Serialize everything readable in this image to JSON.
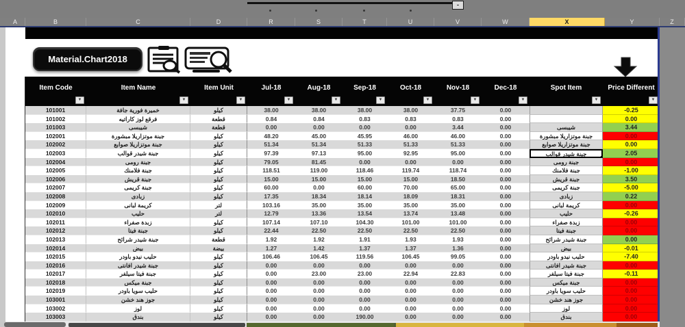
{
  "sheet": {
    "column_letters": [
      "A",
      "B",
      "C",
      "D",
      "R",
      "S",
      "T",
      "U",
      "V",
      "W",
      "X",
      "Y",
      "Z"
    ],
    "selected_column": "X",
    "outline": {
      "collapse_label": "-"
    }
  },
  "toolbar": {
    "chart_button_label": "Material.Chart2018"
  },
  "table": {
    "headers": [
      "Item Code",
      "Item Name",
      "Item Unit",
      "Jul-18",
      "Aug-18",
      "Sep-18",
      "Oct-18",
      "Nov-18",
      "Dec-18",
      "Spot Item",
      "Price Different"
    ],
    "filter_glyph": "▼",
    "rows": [
      {
        "code": "101001",
        "name": "خميرة فورية جافة",
        "unit": "كيلو",
        "months": [
          "38.00",
          "38.00",
          "38.00",
          "38.00",
          "37.75",
          "0.00"
        ],
        "spot": "",
        "diff": "-0.25",
        "diff_color": "yellow",
        "selected": false
      },
      {
        "code": "101002",
        "name": "فرقع لوز كاراتيه",
        "unit": "قطعة",
        "months": [
          "0.84",
          "0.84",
          "0.83",
          "0.83",
          "0.83",
          "0.00"
        ],
        "spot": "",
        "diff": "0.00",
        "diff_color": "yellow",
        "selected": false
      },
      {
        "code": "101003",
        "name": "شيبسى",
        "unit": "قطعة",
        "months": [
          "0.00",
          "0.00",
          "0.00",
          "0.00",
          "3.44",
          "0.00"
        ],
        "spot": "شيبسى",
        "diff": "3.44",
        "diff_color": "green",
        "selected": false
      },
      {
        "code": "102001",
        "name": "جبنة موتزاريلا مبشورة",
        "unit": "كيلو",
        "months": [
          "48.20",
          "45.00",
          "45.95",
          "46.00",
          "46.00",
          "0.00"
        ],
        "spot": "جبنة موتزاريلا مبشورة",
        "diff": "0.00",
        "diff_color": "red",
        "selected": false
      },
      {
        "code": "102002",
        "name": "جبنة موتزاريلا صوابع",
        "unit": "كيلو",
        "months": [
          "51.34",
          "51.34",
          "51.33",
          "51.33",
          "51.33",
          "0.00"
        ],
        "spot": "جبنة موتزاريلا صوابع",
        "diff": "0.00",
        "diff_color": "yellow",
        "selected": false
      },
      {
        "code": "102003",
        "name": "جبنة شيدر قوالب",
        "unit": "كيلو",
        "months": [
          "97.39",
          "97.13",
          "95.00",
          "92.95",
          "95.00",
          "0.00"
        ],
        "spot": "جبنة شيدر قوالب",
        "diff": "2.05",
        "diff_color": "green",
        "selected": true
      },
      {
        "code": "102004",
        "name": "جبنة رومى",
        "unit": "كيلو",
        "months": [
          "79.05",
          "81.45",
          "0.00",
          "0.00",
          "0.00",
          "0.00"
        ],
        "spot": "جبنة رومى",
        "diff": "0.00",
        "diff_color": "red",
        "selected": false
      },
      {
        "code": "102005",
        "name": "جبنة فلامنك",
        "unit": "كيلو",
        "months": [
          "118.51",
          "119.00",
          "118.46",
          "119.74",
          "118.74",
          "0.00"
        ],
        "spot": "جبنة فلامنك",
        "diff": "-1.00",
        "diff_color": "yellow",
        "selected": false
      },
      {
        "code": "102006",
        "name": "جبنة قريش",
        "unit": "كيلو",
        "months": [
          "15.00",
          "15.00",
          "15.00",
          "15.00",
          "18.50",
          "0.00"
        ],
        "spot": "جبنة قريش",
        "diff": "3.50",
        "diff_color": "green",
        "selected": false
      },
      {
        "code": "102007",
        "name": "جبنة كريمى",
        "unit": "كيلو",
        "months": [
          "60.00",
          "0.00",
          "60.00",
          "70.00",
          "65.00",
          "0.00"
        ],
        "spot": "جبنة كريمى",
        "diff": "-5.00",
        "diff_color": "yellow",
        "selected": false
      },
      {
        "code": "102008",
        "name": "زبادى",
        "unit": "كيلو",
        "months": [
          "17.35",
          "18.34",
          "18.14",
          "18.09",
          "18.31",
          "0.00"
        ],
        "spot": "زبادى",
        "diff": "0.22",
        "diff_color": "green",
        "selected": false
      },
      {
        "code": "102009",
        "name": "كريمة لبانى",
        "unit": "لتر",
        "months": [
          "103.16",
          "35.00",
          "35.00",
          "35.00",
          "35.00",
          "0.00"
        ],
        "spot": "كريمة لبانى",
        "diff": "0.00",
        "diff_color": "red",
        "selected": false
      },
      {
        "code": "102010",
        "name": "حليب",
        "unit": "لتر",
        "months": [
          "12.79",
          "13.36",
          "13.54",
          "13.74",
          "13.48",
          "0.00"
        ],
        "spot": "حليب",
        "diff": "-0.26",
        "diff_color": "yellow",
        "selected": false
      },
      {
        "code": "102011",
        "name": "زبدة صفراء",
        "unit": "كيلو",
        "months": [
          "107.14",
          "107.10",
          "104.30",
          "101.00",
          "101.00",
          "0.00"
        ],
        "spot": "زبدة صفراء",
        "diff": "0.00",
        "diff_color": "red",
        "selected": false
      },
      {
        "code": "102012",
        "name": "جبنة فيتا",
        "unit": "كيلو",
        "months": [
          "22.44",
          "22.50",
          "22.50",
          "22.50",
          "22.50",
          "0.00"
        ],
        "spot": "جبنة فيتا",
        "diff": "0.00",
        "diff_color": "red",
        "selected": false
      },
      {
        "code": "102013",
        "name": "جبنة شيدر شرائح",
        "unit": "قطعة",
        "months": [
          "1.92",
          "1.92",
          "1.91",
          "1.93",
          "1.93",
          "0.00"
        ],
        "spot": "جبنة شيدر شرائح",
        "diff": "0.00",
        "diff_color": "green",
        "selected": false
      },
      {
        "code": "102014",
        "name": "بيض",
        "unit": "بيضة",
        "months": [
          "1.27",
          "1.42",
          "1.37",
          "1.37",
          "1.36",
          "0.00"
        ],
        "spot": "بيض",
        "diff": "-0.01",
        "diff_color": "yellow",
        "selected": false
      },
      {
        "code": "102015",
        "name": "حليب نيدو باودر",
        "unit": "كيلو",
        "months": [
          "106.46",
          "106.45",
          "119.56",
          "106.45",
          "99.05",
          "0.00"
        ],
        "spot": "حليب نيدو باودر",
        "diff": "-7.40",
        "diff_color": "yellow",
        "selected": false
      },
      {
        "code": "102016",
        "name": "جبنة شيدر افانتى",
        "unit": "كيلو",
        "months": [
          "0.00",
          "0.00",
          "0.00",
          "0.00",
          "0.00",
          "0.00"
        ],
        "spot": "جبنة شيدر افانتى",
        "diff": "0.00",
        "diff_color": "red",
        "selected": false
      },
      {
        "code": "102017",
        "name": "جبنة فيتا سيلفر",
        "unit": "كيلو",
        "months": [
          "0.00",
          "23.00",
          "23.00",
          "22.94",
          "22.83",
          "0.00"
        ],
        "spot": "جبنة فيتا سيلفر",
        "diff": "-0.11",
        "diff_color": "yellow",
        "selected": false
      },
      {
        "code": "102018",
        "name": "جبنة ميكس",
        "unit": "كيلو",
        "months": [
          "0.00",
          "0.00",
          "0.00",
          "0.00",
          "0.00",
          "0.00"
        ],
        "spot": "جبنة ميكس",
        "diff": "0.00",
        "diff_color": "red",
        "selected": false
      },
      {
        "code": "102019",
        "name": "حليب سويا باودر",
        "unit": "كيلو",
        "months": [
          "0.00",
          "0.00",
          "0.00",
          "0.00",
          "0.00",
          "0.00"
        ],
        "spot": "حليب سويا باودر",
        "diff": "0.00",
        "diff_color": "red",
        "selected": false
      },
      {
        "code": "103001",
        "name": "جوز هند خشن",
        "unit": "كيلو",
        "months": [
          "0.00",
          "0.00",
          "0.00",
          "0.00",
          "0.00",
          "0.00"
        ],
        "spot": "جوز هند خشن",
        "diff": "0.00",
        "diff_color": "red",
        "selected": false
      },
      {
        "code": "103002",
        "name": "لوز",
        "unit": "كيلو",
        "months": [
          "0.00",
          "0.00",
          "0.00",
          "0.00",
          "0.00",
          "0.00"
        ],
        "spot": "لوز",
        "diff": "0.00",
        "diff_color": "red",
        "selected": false
      },
      {
        "code": "103003",
        "name": "بندق",
        "unit": "كيلو",
        "months": [
          "0.00",
          "0.00",
          "190.00",
          "0.00",
          "0.00",
          "0.00"
        ],
        "spot": "بندق",
        "diff": "0.00",
        "diff_color": "red",
        "selected": false
      }
    ]
  },
  "colors": {
    "diff_yellow": "#ffff00",
    "diff_green": "#92d050",
    "diff_red": "#ff0000",
    "diff_red_text": "#9c0006",
    "selected_column_fill": "#ffd965",
    "bottom_strip_segments": [
      "#55682e",
      "#4f5f35",
      "#d9b53f",
      "#c98f2f",
      "#9c5b16"
    ]
  }
}
